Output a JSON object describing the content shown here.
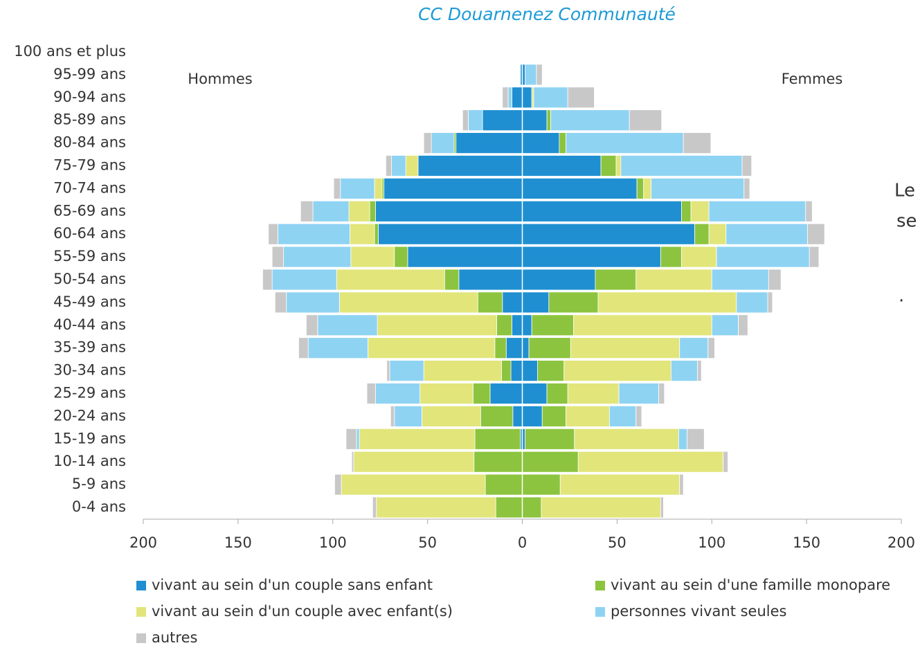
{
  "chart_data": {
    "type": "pyramid",
    "title": "CC Douarnenez Communauté",
    "left_label": "Hommes",
    "right_label": "Femmes",
    "side_text": [
      "Le",
      "se",
      "."
    ],
    "categories": [
      "100 ans et plus",
      "95-99 ans",
      "90-94 ans",
      "85-89 ans",
      "80-84 ans",
      "75-79 ans",
      "70-74 ans",
      "65-69 ans",
      "60-64 ans",
      "55-59 ans",
      "50-54 ans",
      "45-49 ans",
      "40-44 ans",
      "35-39 ans",
      "30-34 ans",
      "25-29 ans",
      "20-24 ans",
      "15-19 ans",
      "10-14 ans",
      "5-9 ans",
      "0-4 ans"
    ],
    "series": [
      {
        "name": "vivant au sein d'un couple sans enfant",
        "color": "#1f8fd1",
        "values": [
          0,
          1,
          5.5,
          21,
          35,
          55,
          73,
          77.5,
          76,
          60.5,
          33.5,
          10.5,
          5.5,
          8.5,
          6,
          17,
          5,
          1,
          0,
          0,
          0
        ],
        "values_right": [
          0,
          1.5,
          5,
          13,
          19.5,
          41.5,
          60.5,
          84,
          91,
          73,
          38.5,
          14,
          5,
          3.5,
          8,
          13,
          10.5,
          1.5,
          0,
          0,
          0
        ]
      },
      {
        "name": "vivant au sein d'une famille monopare",
        "color": "#8cc43f",
        "values": [
          0,
          0,
          0,
          0,
          1,
          0,
          1,
          3,
          2,
          7,
          7.5,
          13,
          8,
          6,
          5,
          9,
          17,
          24,
          25.5,
          19.5,
          14
        ],
        "values_right": [
          0,
          0,
          0,
          2,
          3.5,
          8,
          3.5,
          5,
          7.5,
          11,
          21.5,
          26,
          22,
          22,
          14,
          11,
          12.5,
          26,
          29.5,
          20,
          10
        ]
      },
      {
        "name": "vivant au sein d'un couple avec enfant(s)",
        "color": "#e2e57a",
        "values": [
          0,
          0,
          0,
          0,
          0,
          6.5,
          4,
          11,
          13,
          23,
          57,
          73,
          63,
          67,
          41,
          28,
          31,
          61,
          63.5,
          76,
          63
        ],
        "values_right": [
          0,
          0,
          1,
          0,
          0,
          2.5,
          4,
          9.5,
          9,
          18.5,
          40,
          73,
          73,
          57.5,
          56.5,
          27,
          23,
          55,
          76.5,
          63,
          63
        ]
      },
      {
        "name": "personnes vivant seules",
        "color": "#8fd3f3",
        "values": [
          0,
          0,
          2,
          7.5,
          12,
          7.5,
          18,
          19,
          38,
          35.5,
          34,
          28,
          31.5,
          31.5,
          18,
          23.5,
          14.5,
          1.5,
          0,
          0,
          0
        ],
        "values_right": [
          0,
          6,
          18,
          41.5,
          62,
          64,
          49,
          51,
          43,
          49,
          30,
          16.5,
          14,
          15,
          14,
          21,
          14,
          4.5,
          0,
          0,
          0
        ]
      },
      {
        "name": "autres",
        "color": "#c8c8c8",
        "values": [
          0,
          0,
          3,
          3,
          4,
          3,
          3.5,
          6.5,
          5,
          6,
          5,
          6,
          6,
          5,
          1.5,
          4.5,
          2,
          5.5,
          1,
          3.5,
          2
        ],
        "values_right": [
          0,
          3,
          14,
          17,
          14.5,
          5,
          3,
          3.5,
          9,
          5,
          6.5,
          2.5,
          5,
          3.5,
          2,
          3,
          3,
          9,
          2.5,
          2,
          1.5
        ]
      }
    ],
    "xlim": [
      -200,
      200
    ],
    "xticks": [
      {
        "value": -200,
        "label": "200"
      },
      {
        "value": -150,
        "label": "150"
      },
      {
        "value": -100,
        "label": "100"
      },
      {
        "value": -50,
        "label": "50"
      },
      0,
      50,
      100,
      150,
      200
    ],
    "grid": false
  }
}
